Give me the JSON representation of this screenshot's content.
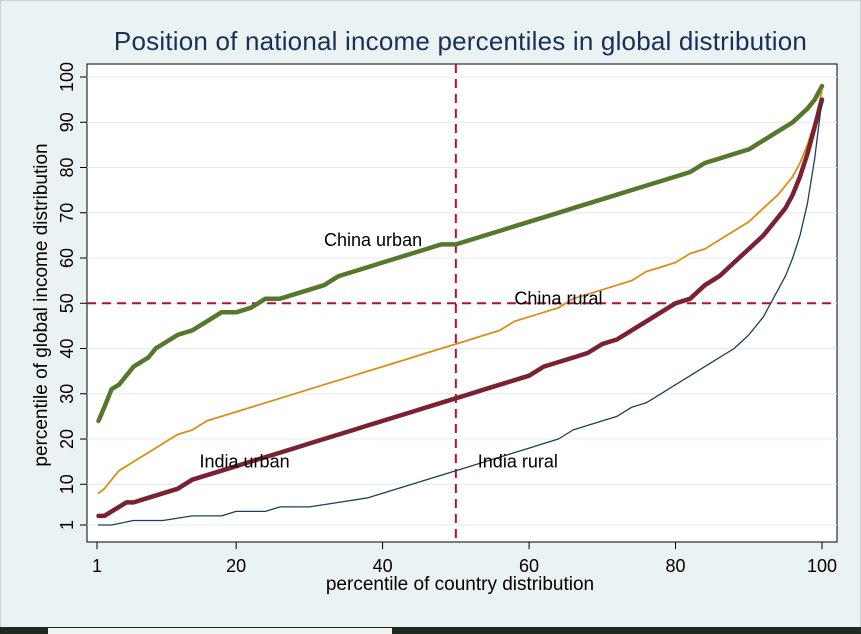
{
  "chart_data": {
    "type": "line",
    "title": "Position of national income percentiles in global distribution",
    "xlabel": "percentile of country distribution",
    "ylabel": "percentile of global income distribution",
    "xlim": [
      1,
      100
    ],
    "ylim": [
      1,
      100
    ],
    "x_ticks": [
      1,
      20,
      40,
      60,
      80,
      100
    ],
    "y_ticks": [
      1,
      10,
      20,
      30,
      40,
      50,
      60,
      70,
      80,
      90,
      100
    ],
    "grid": true,
    "legend": "none",
    "reference_lines": {
      "x": 50,
      "y": 50,
      "color": "#b0103c",
      "style": "dashed"
    },
    "annotations": [
      {
        "text": "China urban",
        "x": 32,
        "y": 64
      },
      {
        "text": "China rural",
        "x": 58,
        "y": 51
      },
      {
        "text": "India urban",
        "x": 15,
        "y": 15
      },
      {
        "text": "India rural",
        "x": 53,
        "y": 15
      }
    ],
    "series": [
      {
        "color": "#55782c",
        "width": 4.5,
        "points": [
          [
            1.2,
            24
          ],
          [
            2,
            27
          ],
          [
            3,
            31
          ],
          [
            4,
            32
          ],
          [
            5,
            34
          ],
          [
            6,
            36
          ],
          [
            7,
            37
          ],
          [
            8,
            38
          ],
          [
            9,
            40
          ],
          [
            10,
            41
          ],
          [
            12,
            43
          ],
          [
            14,
            44
          ],
          [
            16,
            46
          ],
          [
            18,
            48
          ],
          [
            20,
            48
          ],
          [
            22,
            49
          ],
          [
            24,
            51
          ],
          [
            26,
            51
          ],
          [
            28,
            52
          ],
          [
            30,
            53
          ],
          [
            32,
            54
          ],
          [
            34,
            56
          ],
          [
            36,
            57
          ],
          [
            38,
            58
          ],
          [
            40,
            59
          ],
          [
            42,
            60
          ],
          [
            44,
            61
          ],
          [
            46,
            62
          ],
          [
            48,
            63
          ],
          [
            50,
            63
          ],
          [
            52,
            64
          ],
          [
            54,
            65
          ],
          [
            56,
            66
          ],
          [
            58,
            67
          ],
          [
            60,
            68
          ],
          [
            62,
            69
          ],
          [
            64,
            70
          ],
          [
            66,
            71
          ],
          [
            68,
            72
          ],
          [
            70,
            73
          ],
          [
            72,
            74
          ],
          [
            74,
            75
          ],
          [
            76,
            76
          ],
          [
            78,
            77
          ],
          [
            80,
            78
          ],
          [
            82,
            79
          ],
          [
            84,
            81
          ],
          [
            86,
            82
          ],
          [
            88,
            83
          ],
          [
            90,
            84
          ],
          [
            92,
            86
          ],
          [
            94,
            88
          ],
          [
            96,
            90
          ],
          [
            98,
            93
          ],
          [
            99,
            95
          ],
          [
            100,
            98
          ]
        ]
      },
      {
        "color": "#d69018",
        "width": 1.8,
        "points": [
          [
            1.2,
            8
          ],
          [
            2,
            9
          ],
          [
            3,
            11
          ],
          [
            4,
            13
          ],
          [
            5,
            14
          ],
          [
            6,
            15
          ],
          [
            8,
            17
          ],
          [
            10,
            19
          ],
          [
            12,
            21
          ],
          [
            14,
            22
          ],
          [
            16,
            24
          ],
          [
            18,
            25
          ],
          [
            20,
            26
          ],
          [
            22,
            27
          ],
          [
            24,
            28
          ],
          [
            26,
            29
          ],
          [
            28,
            30
          ],
          [
            30,
            31
          ],
          [
            32,
            32
          ],
          [
            34,
            33
          ],
          [
            36,
            34
          ],
          [
            38,
            35
          ],
          [
            40,
            36
          ],
          [
            42,
            37
          ],
          [
            44,
            38
          ],
          [
            46,
            39
          ],
          [
            48,
            40
          ],
          [
            50,
            41
          ],
          [
            52,
            42
          ],
          [
            54,
            43
          ],
          [
            56,
            44
          ],
          [
            58,
            46
          ],
          [
            60,
            47
          ],
          [
            62,
            48
          ],
          [
            64,
            49
          ],
          [
            66,
            51
          ],
          [
            68,
            52
          ],
          [
            70,
            53
          ],
          [
            72,
            54
          ],
          [
            74,
            55
          ],
          [
            76,
            57
          ],
          [
            78,
            58
          ],
          [
            80,
            59
          ],
          [
            82,
            61
          ],
          [
            84,
            62
          ],
          [
            86,
            64
          ],
          [
            88,
            66
          ],
          [
            90,
            68
          ],
          [
            92,
            71
          ],
          [
            94,
            74
          ],
          [
            96,
            78
          ],
          [
            97,
            81
          ],
          [
            98,
            85
          ],
          [
            99,
            90
          ],
          [
            100,
            97
          ]
        ]
      },
      {
        "color": "#7b2232",
        "width": 4.5,
        "points": [
          [
            1.2,
            3
          ],
          [
            2,
            3
          ],
          [
            3,
            4
          ],
          [
            4,
            5
          ],
          [
            5,
            6
          ],
          [
            6,
            6
          ],
          [
            8,
            7
          ],
          [
            10,
            8
          ],
          [
            12,
            9
          ],
          [
            14,
            11
          ],
          [
            16,
            12
          ],
          [
            18,
            13
          ],
          [
            20,
            14
          ],
          [
            22,
            15
          ],
          [
            24,
            16
          ],
          [
            26,
            17
          ],
          [
            28,
            18
          ],
          [
            30,
            19
          ],
          [
            32,
            20
          ],
          [
            34,
            21
          ],
          [
            36,
            22
          ],
          [
            38,
            23
          ],
          [
            40,
            24
          ],
          [
            42,
            25
          ],
          [
            44,
            26
          ],
          [
            46,
            27
          ],
          [
            48,
            28
          ],
          [
            50,
            29
          ],
          [
            52,
            30
          ],
          [
            54,
            31
          ],
          [
            56,
            32
          ],
          [
            58,
            33
          ],
          [
            60,
            34
          ],
          [
            62,
            36
          ],
          [
            64,
            37
          ],
          [
            66,
            38
          ],
          [
            68,
            39
          ],
          [
            70,
            41
          ],
          [
            72,
            42
          ],
          [
            74,
            44
          ],
          [
            76,
            46
          ],
          [
            78,
            48
          ],
          [
            80,
            50
          ],
          [
            82,
            51
          ],
          [
            84,
            54
          ],
          [
            86,
            56
          ],
          [
            88,
            59
          ],
          [
            90,
            62
          ],
          [
            92,
            65
          ],
          [
            94,
            69
          ],
          [
            95,
            71
          ],
          [
            96,
            74
          ],
          [
            97,
            78
          ],
          [
            98,
            83
          ],
          [
            99,
            89
          ],
          [
            100,
            95
          ]
        ]
      },
      {
        "color": "#1c3f5e",
        "width": 1.3,
        "points": [
          [
            1.2,
            1
          ],
          [
            3,
            1
          ],
          [
            6,
            2
          ],
          [
            10,
            2
          ],
          [
            14,
            3
          ],
          [
            18,
            3
          ],
          [
            20,
            4
          ],
          [
            24,
            4
          ],
          [
            26,
            5
          ],
          [
            30,
            5
          ],
          [
            34,
            6
          ],
          [
            38,
            7
          ],
          [
            40,
            8
          ],
          [
            42,
            9
          ],
          [
            44,
            10
          ],
          [
            46,
            11
          ],
          [
            48,
            12
          ],
          [
            50,
            13
          ],
          [
            52,
            14
          ],
          [
            54,
            15
          ],
          [
            56,
            16
          ],
          [
            58,
            17
          ],
          [
            60,
            18
          ],
          [
            62,
            19
          ],
          [
            64,
            20
          ],
          [
            66,
            22
          ],
          [
            68,
            23
          ],
          [
            70,
            24
          ],
          [
            72,
            25
          ],
          [
            74,
            27
          ],
          [
            76,
            28
          ],
          [
            78,
            30
          ],
          [
            80,
            32
          ],
          [
            82,
            34
          ],
          [
            84,
            36
          ],
          [
            86,
            38
          ],
          [
            88,
            40
          ],
          [
            90,
            43
          ],
          [
            92,
            47
          ],
          [
            93,
            50
          ],
          [
            94,
            53
          ],
          [
            95,
            56
          ],
          [
            96,
            60
          ],
          [
            97,
            65
          ],
          [
            98,
            72
          ],
          [
            99,
            82
          ],
          [
            100,
            95
          ]
        ]
      }
    ]
  }
}
